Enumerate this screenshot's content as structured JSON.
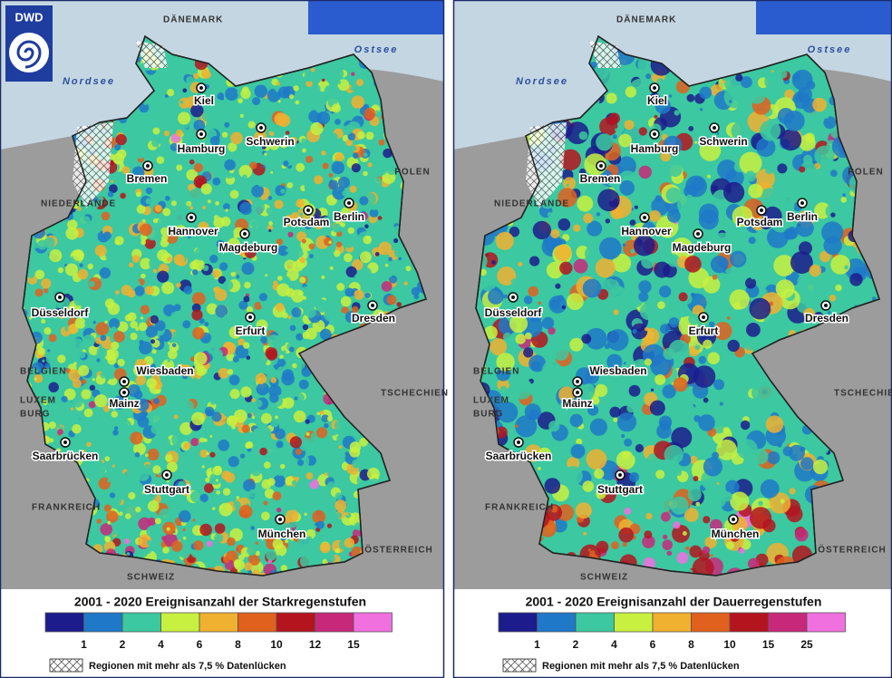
{
  "logo": "DWD",
  "maps": [
    {
      "title": "2001 - 2020 Ereignisanzahl der Starkregenstufen",
      "legend": {
        "colors": [
          "#1c1c8c",
          "#1f78c8",
          "#3cc8a0",
          "#c8f040",
          "#f0b030",
          "#e0601e",
          "#b4141e",
          "#c8287a",
          "#f070e0"
        ],
        "labels": [
          1,
          2,
          4,
          6,
          8,
          10,
          12,
          15
        ]
      }
    },
    {
      "title": "2001 - 2020 Ereignisanzahl der Dauerregenstufen",
      "legend": {
        "colors": [
          "#1c1c8c",
          "#1f78c8",
          "#3cc8a0",
          "#c8f040",
          "#f0b030",
          "#e0601e",
          "#b4141e",
          "#c8287a",
          "#f070e0"
        ],
        "labels": [
          1,
          2,
          4,
          6,
          8,
          10,
          15,
          25
        ]
      }
    }
  ],
  "note": "Regionen mit mehr als 7,5 % Datenlücken",
  "seas": [
    "Nordsee",
    "Ostsee"
  ],
  "countries": [
    "DÄNEMARK",
    "POLEN",
    "NIEDERLANDE",
    "BELGIEN",
    "LUXEM",
    "BURG",
    "TSCHECHIEN",
    "FRANKREICH",
    "SCHWEIZ",
    "ÖSTERREICH"
  ],
  "cities": [
    "Kiel",
    "Hamburg",
    "Schwerin",
    "Bremen",
    "Hannover",
    "Potsdam",
    "Berlin",
    "Magdeburg",
    "Düsseldorf",
    "Dresden",
    "Erfurt",
    "Wiesbaden",
    "Mainz",
    "Saarbrücken",
    "Stuttgart",
    "München"
  ]
}
